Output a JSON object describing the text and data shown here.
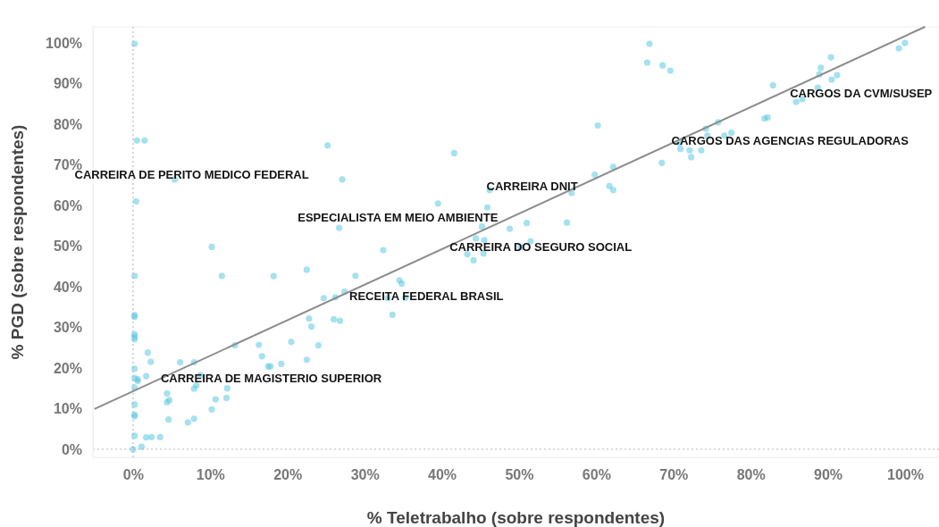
{
  "chart_data": {
    "type": "scatter",
    "xlabel": "% Teletrabalho (sobre respondentes)",
    "ylabel": "% PGD (sobre respondentes)",
    "xlim": [
      -5.2,
      104.4
    ],
    "ylim": [
      -2,
      104
    ],
    "xticks": [
      {
        "value": 0,
        "label": "0%"
      },
      {
        "value": 10,
        "label": "10%"
      },
      {
        "value": 20,
        "label": "20%"
      },
      {
        "value": 30,
        "label": "30%"
      },
      {
        "value": 40,
        "label": "40%"
      },
      {
        "value": 50,
        "label": "50%"
      },
      {
        "value": 60,
        "label": "60%"
      },
      {
        "value": 70,
        "label": "70%"
      },
      {
        "value": 80,
        "label": "80%"
      },
      {
        "value": 90,
        "label": "90%"
      },
      {
        "value": 100,
        "label": "100%"
      }
    ],
    "yticks": [
      {
        "value": 0,
        "label": "0%"
      },
      {
        "value": 10,
        "label": "10%"
      },
      {
        "value": 20,
        "label": "20%"
      },
      {
        "value": 30,
        "label": "30%"
      },
      {
        "value": 40,
        "label": "40%"
      },
      {
        "value": 50,
        "label": "50%"
      },
      {
        "value": 60,
        "label": "60%"
      },
      {
        "value": 70,
        "label": "70%"
      },
      {
        "value": 80,
        "label": "80%"
      },
      {
        "value": 90,
        "label": "90%"
      },
      {
        "value": 100,
        "label": "100%"
      }
    ],
    "grid": false,
    "marker": "circle",
    "ref_lines": [
      {
        "axis": "x",
        "value": 0,
        "color": "#bbbbbb",
        "line_style": "dotted"
      },
      {
        "axis": "y",
        "value": 0,
        "color": "#c8c8c8",
        "line_style": "dotted"
      }
    ],
    "series": [
      {
        "color": "#5bc8e0",
        "x": [
          0.2,
          0.5,
          1.5,
          25.2,
          27.1,
          5.4,
          0.4,
          26.7,
          10.2,
          32.4,
          0.2,
          11.5,
          18.2,
          22.5,
          28.8,
          34.5,
          34.8,
          0.2,
          0.2,
          0.2,
          0.2,
          0.2,
          1.9,
          2.3,
          0.2,
          0.2,
          0.6,
          0.6,
          0.2,
          1.7,
          6.1,
          7.9,
          8.7,
          8.2,
          7.9,
          12.2,
          12.1,
          10.7,
          10.2,
          4.4,
          4.4,
          4.7,
          0.2,
          0.2,
          0.2,
          4.6,
          7.1,
          7.9,
          0.2,
          1.7,
          2.4,
          3.5,
          1.1,
          0,
          13.2,
          16.3,
          16.7,
          17.5,
          17.8,
          19.2,
          20.5,
          22.5,
          22.8,
          23.1,
          24,
          24.7,
          26.2,
          26,
          26.8,
          27.4,
          33,
          33.6,
          41.6,
          39.5,
          46.2,
          45.9,
          45.2,
          48.8,
          51,
          56.2,
          44.4,
          45.5,
          51.5,
          50.2,
          43.3,
          45.4,
          44.1,
          35.3,
          56.8,
          59.8,
          62.2,
          61.7,
          62.2,
          60.2,
          66.9,
          66.6,
          68.6,
          69.6,
          68.5,
          70.8,
          70.9,
          72.1,
          72.3,
          73.6,
          74.2,
          74.4,
          75.8,
          76.6,
          77.5,
          81.8,
          82.2,
          82.9,
          85.9,
          86.7,
          88.7,
          88.9,
          89.1,
          90.4,
          90.5,
          91.2,
          99.2,
          100
        ],
        "values": [
          99.8,
          76,
          76,
          74.8,
          66.4,
          66.4,
          61,
          54.5,
          49.8,
          49,
          42.7,
          42.7,
          42.6,
          44.2,
          42.7,
          41.6,
          40.8,
          33,
          32.6,
          28.3,
          27.7,
          27.1,
          23.8,
          21.5,
          19.8,
          17.5,
          17.2,
          16.8,
          15.2,
          18,
          21.4,
          21.4,
          18.2,
          15.7,
          14.9,
          15,
          12.6,
          12.3,
          9.8,
          13.7,
          11.6,
          12.1,
          11,
          8.5,
          8.1,
          7.3,
          6.6,
          7.5,
          3.3,
          2.9,
          3,
          3,
          0.6,
          0,
          25.6,
          25.7,
          22.9,
          20.4,
          20.4,
          21,
          26.4,
          22,
          32.2,
          30.2,
          25.6,
          37.2,
          37.4,
          32,
          31.6,
          38.8,
          37.2,
          33.1,
          72.9,
          60.5,
          63.8,
          59.5,
          54.8,
          54.3,
          55.7,
          55.8,
          51.9,
          51.5,
          51.2,
          49.8,
          48,
          48.2,
          46.5,
          37.3,
          63.1,
          67.6,
          69.5,
          64.8,
          63.8,
          79.7,
          99.8,
          95.2,
          94.5,
          93.2,
          70.5,
          75.4,
          73.9,
          73.6,
          71.9,
          73.6,
          78.9,
          77.2,
          80.5,
          77.2,
          77.9,
          81.4,
          81.7,
          89.6,
          85.5,
          86.2,
          89,
          92.3,
          93.9,
          96.5,
          91,
          92.1,
          98.7,
          100
        ]
      },
      {
        "type": "line",
        "marker": "none",
        "color": "#8c8c8c",
        "x": [
          -5,
          102.6
        ],
        "values": [
          9.9,
          104
        ]
      }
    ],
    "annotations": [
      "CARREIRA DE PERITO MEDICO FEDERAL",
      "ESPECIALISTA EM MEIO AMBIENTE",
      "CARREIRA DNIT",
      "CARREIRA DO SEGURO SOCIAL",
      "RECEITA FEDERAL BRASIL",
      "CARREIRA DE MAGISTERIO SUPERIOR",
      "CARGOS DAS AGENCIAS REGULADORAS",
      "CARGOS DA CVM/SUSEP"
    ]
  }
}
